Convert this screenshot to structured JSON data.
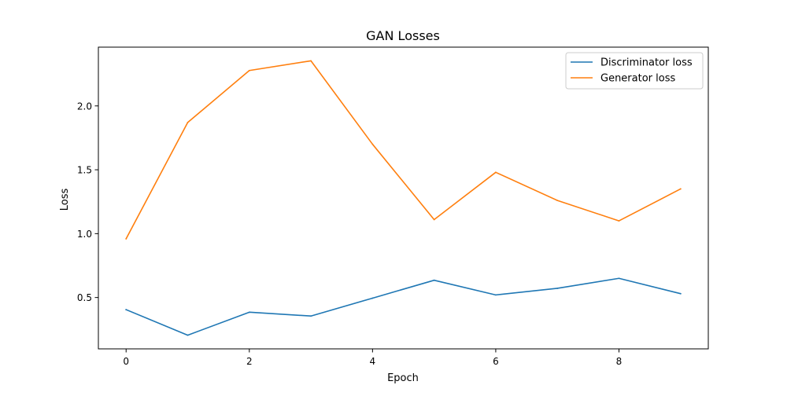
{
  "chart_data": {
    "type": "line",
    "title": "GAN Losses",
    "xlabel": "Epoch",
    "ylabel": "Loss",
    "x": [
      0,
      1,
      2,
      3,
      4,
      5,
      6,
      7,
      8,
      9
    ],
    "series": [
      {
        "name": "Discriminator loss",
        "color": "#1f77b4",
        "values": [
          0.405,
          0.205,
          0.385,
          0.355,
          0.495,
          0.635,
          0.52,
          0.572,
          0.65,
          0.53
        ]
      },
      {
        "name": "Generator loss",
        "color": "#ff7f0e",
        "values": [
          0.96,
          1.87,
          2.277,
          2.353,
          1.7,
          1.11,
          1.48,
          1.26,
          1.1,
          1.35
        ]
      }
    ],
    "xlim": [
      -0.45,
      9.45
    ],
    "ylim": [
      0.098,
      2.46
    ],
    "xticks": [
      0,
      2,
      4,
      6,
      8
    ],
    "yticks": [
      0.5,
      1.0,
      1.5,
      2.0
    ],
    "ytick_labels": [
      "0.5",
      "1.0",
      "1.5",
      "2.0"
    ],
    "grid": false,
    "legend_position": "top-right"
  }
}
